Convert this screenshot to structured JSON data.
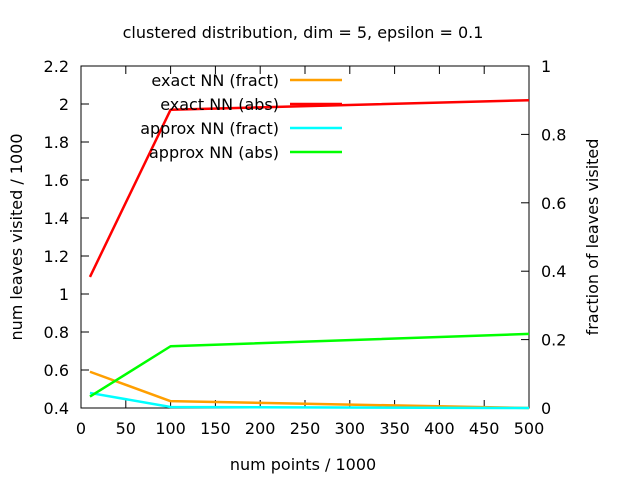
{
  "chart_data": {
    "type": "line",
    "title": "clustered distribution, dim = 5, epsilon = 0.1",
    "xlabel": "num points / 1000",
    "ylabel": "num leaves visited / 1000",
    "y2label": "fraction of leaves visited",
    "xlim": [
      0,
      500
    ],
    "ylim": [
      0.4,
      2.2
    ],
    "y2lim": [
      0,
      1
    ],
    "x_ticks": [
      0,
      50,
      100,
      150,
      200,
      250,
      300,
      350,
      400,
      450,
      500
    ],
    "y_ticks": [
      "0.4",
      "0.6",
      "0.8",
      "1",
      "1.2",
      "1.4",
      "1.6",
      "1.8",
      "2",
      "2.2"
    ],
    "y2_ticks": [
      "0",
      "0.2",
      "0.4",
      "0.6",
      "0.8",
      "1"
    ],
    "grid": false,
    "legend_position": "top-left",
    "series": [
      {
        "name": "exact NN (fract)",
        "axis": "y2",
        "color": "#ff9f00",
        "x": [
          10,
          100,
          500
        ],
        "values": [
          0.106,
          0.02,
          0.0
        ]
      },
      {
        "name": "exact NN (abs)",
        "axis": "y",
        "color": "#ff0000",
        "x": [
          10,
          100,
          500
        ],
        "values": [
          1.09,
          1.97,
          2.02
        ]
      },
      {
        "name": "approx NN (fract)",
        "axis": "y2",
        "color": "#00ffff",
        "x": [
          10,
          100,
          500
        ],
        "values": [
          0.044,
          0.003,
          0.0
        ]
      },
      {
        "name": "approx NN (abs)",
        "axis": "y",
        "color": "#00ff00",
        "x": [
          10,
          100,
          500
        ],
        "values": [
          0.46,
          0.725,
          0.79
        ]
      }
    ]
  }
}
